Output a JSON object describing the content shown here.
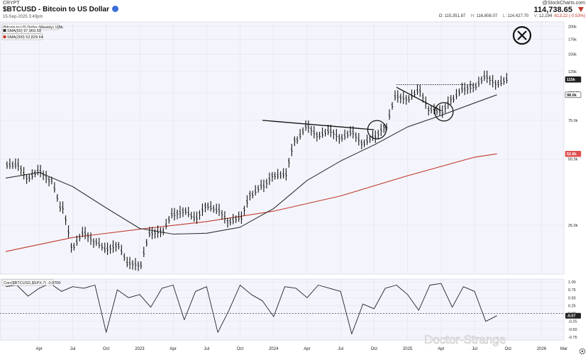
{
  "header": {
    "market": "CRYPT",
    "title": "$BTCUSD - Bitcoin to US Dollar",
    "date": "15-Sep-2025 3:49pm",
    "brand": "@StockCharts.com",
    "price": "114,738.65",
    "ohlc": {
      "o_label": "O:",
      "o": "115,351.87",
      "h_label": "H:",
      "h": "116,808.07",
      "l_label": "L:",
      "l": "114,427.70",
      "v_label": "V:",
      "v": "12,194",
      "change": "-613.22 (-0.53%)"
    }
  },
  "legend": {
    "main": "Bitcoin to US Dollar (Weekly) 115k",
    "sma50": "SMA(50) 97,969.59",
    "sma200": "SMA(200) 52,829.64",
    "corr": "Corr($BTCUSD,$SPX,7) -0.0700"
  },
  "watermark": "Doctor-Strange",
  "colors": {
    "plot_bg": "#f4f5fc",
    "bars": "#111111",
    "sma50": "#333333",
    "sma200": "#c0392b",
    "current_price": "#222222",
    "sma200_tag": "#e05050"
  },
  "chart_data": {
    "type": "line",
    "price_panel": {
      "scale": "log",
      "ylim": [
        15000,
        210000
      ],
      "yticks": [
        {
          "value": 200000,
          "label": "200k"
        },
        {
          "value": 175000,
          "label": "175k"
        },
        {
          "value": 150000,
          "label": "150k"
        },
        {
          "value": 125000,
          "label": "125k"
        },
        {
          "value": 100000,
          "label": "100.0k"
        },
        {
          "value": 75000,
          "label": "75.0k"
        },
        {
          "value": 50000,
          "label": "50.0k"
        },
        {
          "value": 25000,
          "label": "25.0k"
        }
      ],
      "price_tags": [
        {
          "name": "Price",
          "value": 115000,
          "label": "115k"
        },
        {
          "name": "SMA(50)",
          "value": 98000,
          "label": "98.0k"
        },
        {
          "name": "SMA(200)",
          "value": 52800,
          "label": "52.8k"
        }
      ],
      "series": [
        {
          "name": "Bitcoin to US Dollar",
          "style": "ohlc_bars",
          "x": [
            "2022-01",
            "2022-02",
            "2022-03",
            "2022-04",
            "2022-05",
            "2022-06",
            "2022-07",
            "2022-08",
            "2022-09",
            "2022-10",
            "2022-11",
            "2022-12",
            "2023-01",
            "2023-02",
            "2023-03",
            "2023-04",
            "2023-05",
            "2023-06",
            "2023-07",
            "2023-08",
            "2023-09",
            "2023-10",
            "2023-11",
            "2023-12",
            "2024-01",
            "2024-02",
            "2024-03",
            "2024-04",
            "2024-05",
            "2024-06",
            "2024-07",
            "2024-08",
            "2024-09",
            "2024-10",
            "2024-11",
            "2024-12",
            "2025-01",
            "2025-02",
            "2025-03",
            "2025-04",
            "2025-05",
            "2025-06",
            "2025-07",
            "2025-08",
            "2025-09"
          ],
          "values": [
            47000,
            41000,
            44000,
            40000,
            30000,
            20000,
            23000,
            21000,
            19500,
            20200,
            16800,
            16500,
            23000,
            23500,
            28000,
            29000,
            27000,
            30500,
            29300,
            26000,
            27000,
            34500,
            37700,
            42000,
            42500,
            61000,
            70000,
            64000,
            67000,
            62500,
            66000,
            59000,
            63000,
            70000,
            96000,
            94000,
            102000,
            84000,
            82000,
            94000,
            104000,
            107000,
            118000,
            110000,
            115000
          ]
        },
        {
          "name": "SMA(50)",
          "x": [
            "2022-01",
            "2022-04",
            "2022-07",
            "2022-10",
            "2023-01",
            "2023-04",
            "2023-07",
            "2023-10",
            "2024-01",
            "2024-04",
            "2024-07",
            "2024-10",
            "2025-01",
            "2025-04",
            "2025-07",
            "2025-09"
          ],
          "values": [
            41000,
            43500,
            37500,
            30000,
            24200,
            22800,
            23000,
            24500,
            29800,
            40000,
            49000,
            58000,
            70000,
            79000,
            90000,
            98000
          ]
        },
        {
          "name": "SMA(200)",
          "x": [
            "2022-01",
            "2022-07",
            "2023-01",
            "2023-07",
            "2024-01",
            "2024-07",
            "2025-01",
            "2025-07",
            "2025-09"
          ],
          "values": [
            19000,
            22000,
            24000,
            26000,
            29000,
            34000,
            42000,
            51000,
            52800
          ]
        }
      ],
      "annotations": [
        {
          "type": "trendline",
          "from": [
            "2023-12",
            75000
          ],
          "to": [
            "2024-10",
            68000
          ]
        },
        {
          "type": "trendline",
          "from": [
            "2024-12",
            106000
          ],
          "to": [
            "2025-04",
            83000
          ]
        },
        {
          "type": "hline",
          "from": "2024-12",
          "to": "2025-07",
          "value": 109000
        },
        {
          "type": "circle",
          "at": [
            "2024-10",
            68000
          ]
        },
        {
          "type": "circle",
          "at": [
            "2025-04",
            82000
          ]
        },
        {
          "type": "symbol",
          "name": "x-in-circle-icon"
        }
      ]
    },
    "corr_panel": {
      "ylim": [
        -0.75,
        1.0
      ],
      "yticks": [
        {
          "value": 1.0,
          "label": "1.00"
        },
        {
          "value": 0.75,
          "label": "0.75"
        },
        {
          "value": 0.5,
          "label": "0.50"
        },
        {
          "value": 0.25,
          "label": "0.25"
        },
        {
          "value": 0.0,
          "label": "0.00"
        },
        {
          "value": -0.25,
          "label": "-0.25"
        },
        {
          "value": -0.5,
          "label": "-0.50"
        },
        {
          "value": -0.75,
          "label": "-0.75"
        }
      ],
      "last_tag": {
        "value": -0.07,
        "label": "-0.07"
      },
      "series": [
        {
          "name": "Corr($BTCUSD,$SPX,7)",
          "x": [
            "2022-01",
            "2022-02",
            "2022-03",
            "2022-04",
            "2022-05",
            "2022-06",
            "2022-07",
            "2022-08",
            "2022-09",
            "2022-10",
            "2022-11",
            "2022-12",
            "2023-01",
            "2023-02",
            "2023-03",
            "2023-04",
            "2023-05",
            "2023-06",
            "2023-07",
            "2023-08",
            "2023-09",
            "2023-10",
            "2023-11",
            "2023-12",
            "2024-01",
            "2024-02",
            "2024-03",
            "2024-04",
            "2024-05",
            "2024-06",
            "2024-07",
            "2024-08",
            "2024-09",
            "2024-10",
            "2024-11",
            "2024-12",
            "2025-01",
            "2025-02",
            "2025-03",
            "2025-04",
            "2025-05",
            "2025-06",
            "2025-07",
            "2025-08",
            "2025-09"
          ],
          "values": [
            0.85,
            0.9,
            0.55,
            0.8,
            0.95,
            0.7,
            0.85,
            0.8,
            0.9,
            -0.6,
            0.75,
            0.5,
            0.6,
            0.2,
            0.8,
            0.9,
            -0.2,
            0.7,
            0.85,
            -0.6,
            0.1,
            0.9,
            0.6,
            0.4,
            -0.1,
            0.85,
            0.8,
            0.5,
            0.9,
            0.8,
            0.7,
            -0.65,
            0.3,
            0.15,
            0.8,
            0.9,
            0.6,
            0.1,
            0.9,
            0.95,
            0.2,
            0.85,
            0.7,
            -0.25,
            -0.07
          ]
        }
      ]
    },
    "x_axis": {
      "start": "2022-01",
      "end": "2026-03",
      "ticks": [
        {
          "date": "2022-04",
          "label": "Apr"
        },
        {
          "date": "2022-07",
          "label": "Jul"
        },
        {
          "date": "2022-10",
          "label": "Oct"
        },
        {
          "date": "2023-01",
          "label": "2023"
        },
        {
          "date": "2023-04",
          "label": "Apr"
        },
        {
          "date": "2023-07",
          "label": "Jul"
        },
        {
          "date": "2023-10",
          "label": "Oct"
        },
        {
          "date": "2024-01",
          "label": "2024"
        },
        {
          "date": "2024-04",
          "label": "Apr"
        },
        {
          "date": "2024-07",
          "label": "Jul"
        },
        {
          "date": "2024-10",
          "label": "Oct"
        },
        {
          "date": "2025-01",
          "label": "2025"
        },
        {
          "date": "2025-04",
          "label": "Apr"
        },
        {
          "date": "2025-07",
          "label": "Jul"
        },
        {
          "date": "2025-10",
          "label": "Oct"
        },
        {
          "date": "2026-01",
          "label": "2026"
        },
        {
          "date": "2026-03",
          "label": "Mar"
        }
      ]
    }
  }
}
